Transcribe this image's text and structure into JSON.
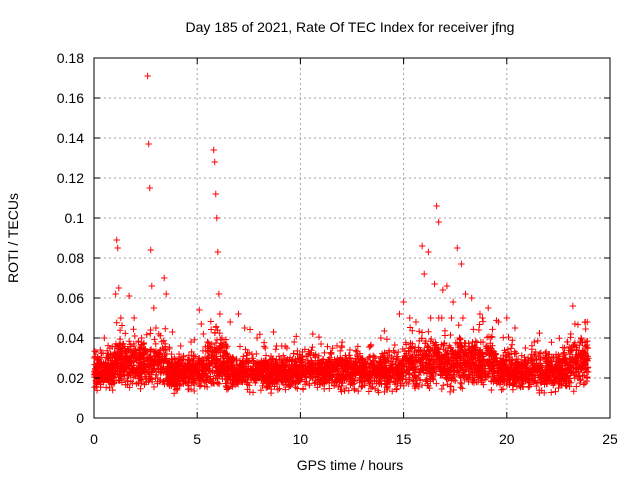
{
  "chart_data": {
    "type": "scatter",
    "title": "Day 185 of 2021, Rate Of TEC Index for receiver jfng",
    "xlabel": "GPS time / hours",
    "ylabel": "ROTI / TECUs",
    "xlim": [
      0,
      25
    ],
    "ylim": [
      0,
      0.18
    ],
    "xticks": [
      0,
      5,
      10,
      15,
      20,
      25
    ],
    "yticks": [
      0,
      0.02,
      0.04,
      0.06,
      0.08,
      0.1,
      0.12,
      0.14,
      0.16,
      0.18
    ],
    "xtick_labels": [
      "0",
      "5",
      "10",
      "15",
      "20",
      "25"
    ],
    "ytick_labels": [
      "0",
      "0.02",
      "0.04",
      "0.06",
      "0.08",
      "0.1",
      "0.12",
      "0.14",
      "0.16",
      "0.18"
    ],
    "grid": true,
    "marker": "+",
    "color": "#ff0000",
    "series": [
      {
        "name": "ROTI",
        "x": [
          0.1,
          0.3,
          0.5,
          0.9,
          1.05,
          1.1,
          1.15,
          1.2,
          1.3,
          1.7,
          2.0,
          2.3,
          2.6,
          2.65,
          2.7,
          2.75,
          2.8,
          2.9,
          3.0,
          3.4,
          3.5,
          3.8,
          4.2,
          4.7,
          5.1,
          5.2,
          5.3,
          5.5,
          5.8,
          5.85,
          5.9,
          5.95,
          6.0,
          6.05,
          6.1,
          6.2,
          6.6,
          7.0,
          7.3,
          7.9,
          8.3,
          8.7,
          9.1,
          9.7,
          10.1,
          10.6,
          11.0,
          11.5,
          12.0,
          12.4,
          12.9,
          13.4,
          13.9,
          14.3,
          14.8,
          15.0,
          15.3,
          15.6,
          15.9,
          16.0,
          16.2,
          16.5,
          16.6,
          16.7,
          16.9,
          17.1,
          17.4,
          17.6,
          17.8,
          18.0,
          18.3,
          18.7,
          19.1,
          19.6,
          20.0,
          20.4,
          20.9,
          21.4,
          21.9,
          22.4,
          22.8,
          23.1,
          23.2,
          23.3,
          23.6,
          23.9
        ],
        "y": [
          0.033,
          0.028,
          0.04,
          0.03,
          0.062,
          0.089,
          0.085,
          0.065,
          0.05,
          0.061,
          0.034,
          0.036,
          0.171,
          0.137,
          0.115,
          0.084,
          0.066,
          0.055,
          0.045,
          0.07,
          0.062,
          0.043,
          0.036,
          0.038,
          0.054,
          0.047,
          0.042,
          0.038,
          0.134,
          0.128,
          0.112,
          0.1,
          0.083,
          0.062,
          0.052,
          0.04,
          0.048,
          0.052,
          0.045,
          0.04,
          0.035,
          0.043,
          0.036,
          0.038,
          0.033,
          0.042,
          0.037,
          0.032,
          0.036,
          0.034,
          0.03,
          0.036,
          0.04,
          0.033,
          0.052,
          0.058,
          0.05,
          0.048,
          0.086,
          0.072,
          0.083,
          0.067,
          0.106,
          0.098,
          0.064,
          0.066,
          0.058,
          0.085,
          0.077,
          0.062,
          0.06,
          0.052,
          0.055,
          0.048,
          0.05,
          0.045,
          0.035,
          0.033,
          0.03,
          0.03,
          0.035,
          0.042,
          0.056,
          0.047,
          0.04,
          0.048
        ]
      }
    ],
    "baseline": {
      "description": "dense band of ROTI samples across the full day",
      "typical_range": [
        0.005,
        0.035
      ]
    }
  }
}
